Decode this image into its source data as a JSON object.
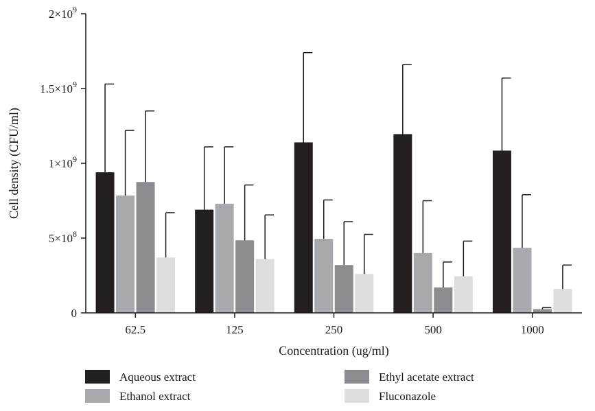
{
  "chart_data": {
    "type": "bar",
    "title": "",
    "xlabel": "Concentration (ug/ml)",
    "ylabel": "Cell density (CFU/ml)",
    "ylim": [
      0,
      2000000000
    ],
    "categories": [
      "62.5",
      "125",
      "250",
      "500",
      "1000"
    ],
    "y_tick_labels": [
      {
        "value": 0,
        "base": "0",
        "exp": ""
      },
      {
        "value": 500000000,
        "base": "5×10",
        "exp": "8"
      },
      {
        "value": 1000000000,
        "base": "1×10",
        "exp": "9"
      },
      {
        "value": 1500000000,
        "base": "1.5×10",
        "exp": "9"
      },
      {
        "value": 2000000000,
        "base": "2×10",
        "exp": "9"
      }
    ],
    "grid": false,
    "legend_position": "bottom",
    "series": [
      {
        "name": "Aqueous extract",
        "color": "#231f20",
        "values": [
          940000000,
          690000000,
          1140000000,
          1195000000,
          1085000000
        ],
        "error": [
          590000000,
          420000000,
          600000000,
          465000000,
          485000000
        ]
      },
      {
        "name": "Ethanol extract",
        "color": "#a7a9ac",
        "values": [
          785000000,
          730000000,
          495000000,
          400000000,
          435000000
        ],
        "error": [
          435000000,
          380000000,
          260000000,
          350000000,
          355000000
        ]
      },
      {
        "name": "Ethyl acetate extract",
        "color": "#8a8c8f",
        "values": [
          875000000,
          485000000,
          320000000,
          170000000,
          25000000
        ],
        "error": [
          475000000,
          370000000,
          290000000,
          170000000,
          10000000
        ]
      },
      {
        "name": "Fluconazole",
        "color": "#dcddde",
        "values": [
          370000000,
          360000000,
          260000000,
          245000000,
          160000000
        ],
        "error": [
          300000000,
          295000000,
          265000000,
          235000000,
          160000000
        ]
      }
    ]
  }
}
